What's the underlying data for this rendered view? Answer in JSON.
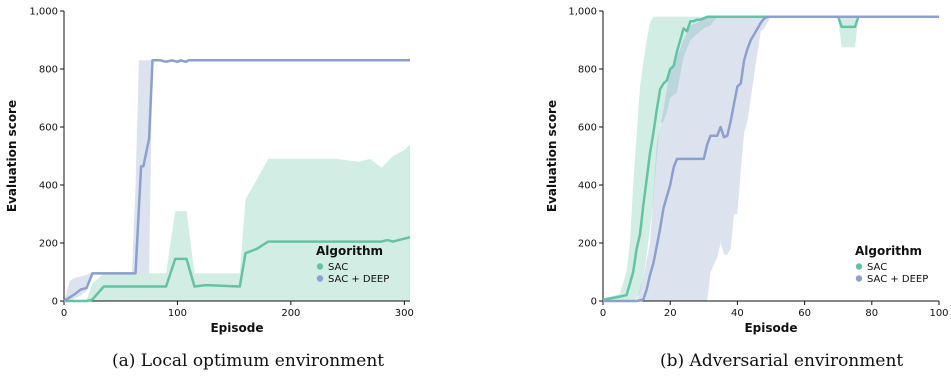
{
  "colors": {
    "sac": "#66c2a5",
    "sac_deep": "#8da0cb",
    "axis": "#111111"
  },
  "chart_data": [
    {
      "type": "line",
      "caption": "(a) Local optimum environment",
      "xlabel": "Episode",
      "ylabel": "Evaluation score",
      "xlim": [
        0,
        305
      ],
      "ylim": [
        0,
        1000
      ],
      "xticks": [
        "0",
        "100",
        "200",
        "300"
      ],
      "yticks": [
        "0",
        "200",
        "400",
        "600",
        "800",
        "1,000"
      ],
      "xtick_values": [
        0,
        100,
        200,
        300
      ],
      "ytick_values": [
        0,
        200,
        400,
        600,
        800,
        1000
      ],
      "legend": {
        "title": "Algorithm",
        "position": "lower-right",
        "entries": [
          "SAC",
          "SAC + DEEP"
        ]
      },
      "series": [
        {
          "name": "SAC",
          "color": "#66c2a5",
          "x": [
            0,
            20,
            25,
            35,
            90,
            98,
            108,
            115,
            125,
            155,
            160,
            170,
            180,
            190,
            200,
            220,
            240,
            260,
            280,
            285,
            290,
            295,
            300,
            305
          ],
          "y": [
            0,
            0,
            5,
            50,
            50,
            145,
            145,
            50,
            55,
            50,
            165,
            180,
            205,
            205,
            205,
            205,
            205,
            205,
            205,
            210,
            205,
            210,
            215,
            220
          ],
          "band_x": [
            0,
            20,
            25,
            35,
            90,
            98,
            108,
            115,
            155,
            160,
            170,
            180,
            200,
            240,
            260,
            270,
            280,
            290,
            300,
            305
          ],
          "band_low": [
            0,
            0,
            0,
            0,
            0,
            0,
            0,
            0,
            0,
            0,
            0,
            0,
            0,
            0,
            0,
            0,
            0,
            0,
            0,
            0
          ],
          "band_high": [
            0,
            5,
            60,
            95,
            95,
            310,
            310,
            95,
            95,
            350,
            420,
            490,
            490,
            490,
            480,
            490,
            460,
            500,
            520,
            540
          ]
        },
        {
          "name": "SAC + DEEP",
          "color": "#8da0cb",
          "x": [
            0,
            10,
            15,
            20,
            25,
            60,
            63,
            68,
            70,
            75,
            78,
            80,
            85,
            90,
            95,
            100,
            103,
            107,
            110,
            150,
            200,
            250,
            305
          ],
          "y": [
            0,
            25,
            40,
            45,
            95,
            95,
            95,
            465,
            465,
            560,
            830,
            830,
            830,
            825,
            830,
            825,
            830,
            825,
            830,
            830,
            830,
            830,
            830
          ],
          "band_x": [
            0,
            5,
            10,
            15,
            20,
            25,
            60,
            63,
            66,
            68,
            70,
            75,
            78,
            80,
            95,
            100,
            110,
            305
          ],
          "band_low": [
            0,
            0,
            10,
            20,
            35,
            95,
            95,
            95,
            95,
            95,
            95,
            95,
            830,
            830,
            830,
            825,
            830,
            830
          ],
          "band_high": [
            0,
            70,
            80,
            85,
            90,
            100,
            100,
            400,
            830,
            830,
            830,
            830,
            830,
            830,
            830,
            830,
            830,
            830
          ]
        }
      ]
    },
    {
      "type": "line",
      "caption": "(b) Adversarial environment",
      "xlabel": "Episode",
      "ylabel": "Evaluation score",
      "xlim": [
        0,
        100
      ],
      "ylim": [
        0,
        1000
      ],
      "xticks": [
        "0",
        "20",
        "40",
        "60",
        "80",
        "100"
      ],
      "yticks": [
        "0",
        "200",
        "400",
        "600",
        "800",
        "1,000"
      ],
      "xtick_values": [
        0,
        20,
        40,
        60,
        80,
        100
      ],
      "ytick_values": [
        0,
        200,
        400,
        600,
        800,
        1000
      ],
      "legend": {
        "title": "Algorithm",
        "position": "lower-right",
        "entries": [
          "SAC",
          "SAC + DEEP"
        ]
      },
      "series": [
        {
          "name": "SAC",
          "color": "#66c2a5",
          "x": [
            0,
            5,
            7,
            8,
            9,
            10,
            11,
            12,
            13,
            14,
            15,
            16,
            17,
            18,
            19,
            20,
            21,
            22,
            23,
            24,
            25,
            26,
            27,
            28,
            29,
            30,
            31,
            32,
            34,
            70,
            71,
            75,
            76,
            100
          ],
          "y": [
            5,
            15,
            20,
            60,
            100,
            180,
            230,
            330,
            420,
            510,
            580,
            660,
            730,
            750,
            760,
            800,
            810,
            860,
            900,
            940,
            930,
            965,
            965,
            970,
            970,
            975,
            980,
            980,
            980,
            980,
            945,
            945,
            980,
            980
          ],
          "band_x": [
            0,
            5,
            7,
            8,
            9,
            10,
            11,
            12,
            13,
            14,
            15,
            16,
            17,
            18,
            19,
            20,
            22,
            24,
            26,
            28,
            30,
            32,
            34,
            70,
            71,
            75,
            76,
            100
          ],
          "band_low": [
            0,
            0,
            0,
            0,
            0,
            10,
            30,
            80,
            160,
            250,
            350,
            500,
            610,
            620,
            650,
            700,
            720,
            840,
            900,
            920,
            940,
            950,
            980,
            980,
            875,
            875,
            980,
            980
          ],
          "band_high": [
            5,
            25,
            100,
            200,
            400,
            570,
            740,
            820,
            900,
            960,
            980,
            980,
            980,
            980,
            980,
            980,
            980,
            980,
            980,
            980,
            980,
            980,
            980,
            980,
            980,
            980,
            980,
            980
          ]
        },
        {
          "name": "SAC + DEEP",
          "color": "#8da0cb",
          "x": [
            0,
            10,
            12,
            13,
            14,
            15,
            16,
            17,
            18,
            19,
            20,
            21,
            22,
            24,
            26,
            28,
            30,
            31,
            32,
            33,
            34,
            35,
            36,
            37,
            38,
            39,
            40,
            41,
            42,
            43,
            44,
            45,
            46,
            47,
            48,
            49,
            100
          ],
          "y": [
            0,
            0,
            5,
            40,
            90,
            130,
            190,
            250,
            320,
            360,
            400,
            460,
            490,
            490,
            490,
            490,
            490,
            540,
            570,
            570,
            570,
            600,
            565,
            570,
            620,
            680,
            740,
            750,
            830,
            870,
            900,
            920,
            940,
            960,
            975,
            980,
            980
          ],
          "band_x": [
            0,
            10,
            12,
            14,
            16,
            18,
            20,
            22,
            24,
            26,
            28,
            30,
            31,
            32,
            34,
            35,
            36,
            37,
            38,
            39,
            40,
            41,
            42,
            43,
            44,
            45,
            46,
            47,
            48,
            50,
            100
          ],
          "band_low": [
            0,
            0,
            0,
            0,
            0,
            0,
            0,
            0,
            0,
            0,
            0,
            0,
            0,
            100,
            150,
            200,
            160,
            160,
            180,
            300,
            300,
            450,
            580,
            620,
            700,
            780,
            860,
            930,
            940,
            980,
            980
          ],
          "band_high": [
            0,
            0,
            80,
            200,
            540,
            660,
            800,
            840,
            900,
            950,
            960,
            970,
            980,
            980,
            980,
            980,
            980,
            980,
            980,
            980,
            980,
            980,
            980,
            980,
            980,
            980,
            980,
            980,
            980,
            980,
            980
          ]
        }
      ]
    }
  ]
}
